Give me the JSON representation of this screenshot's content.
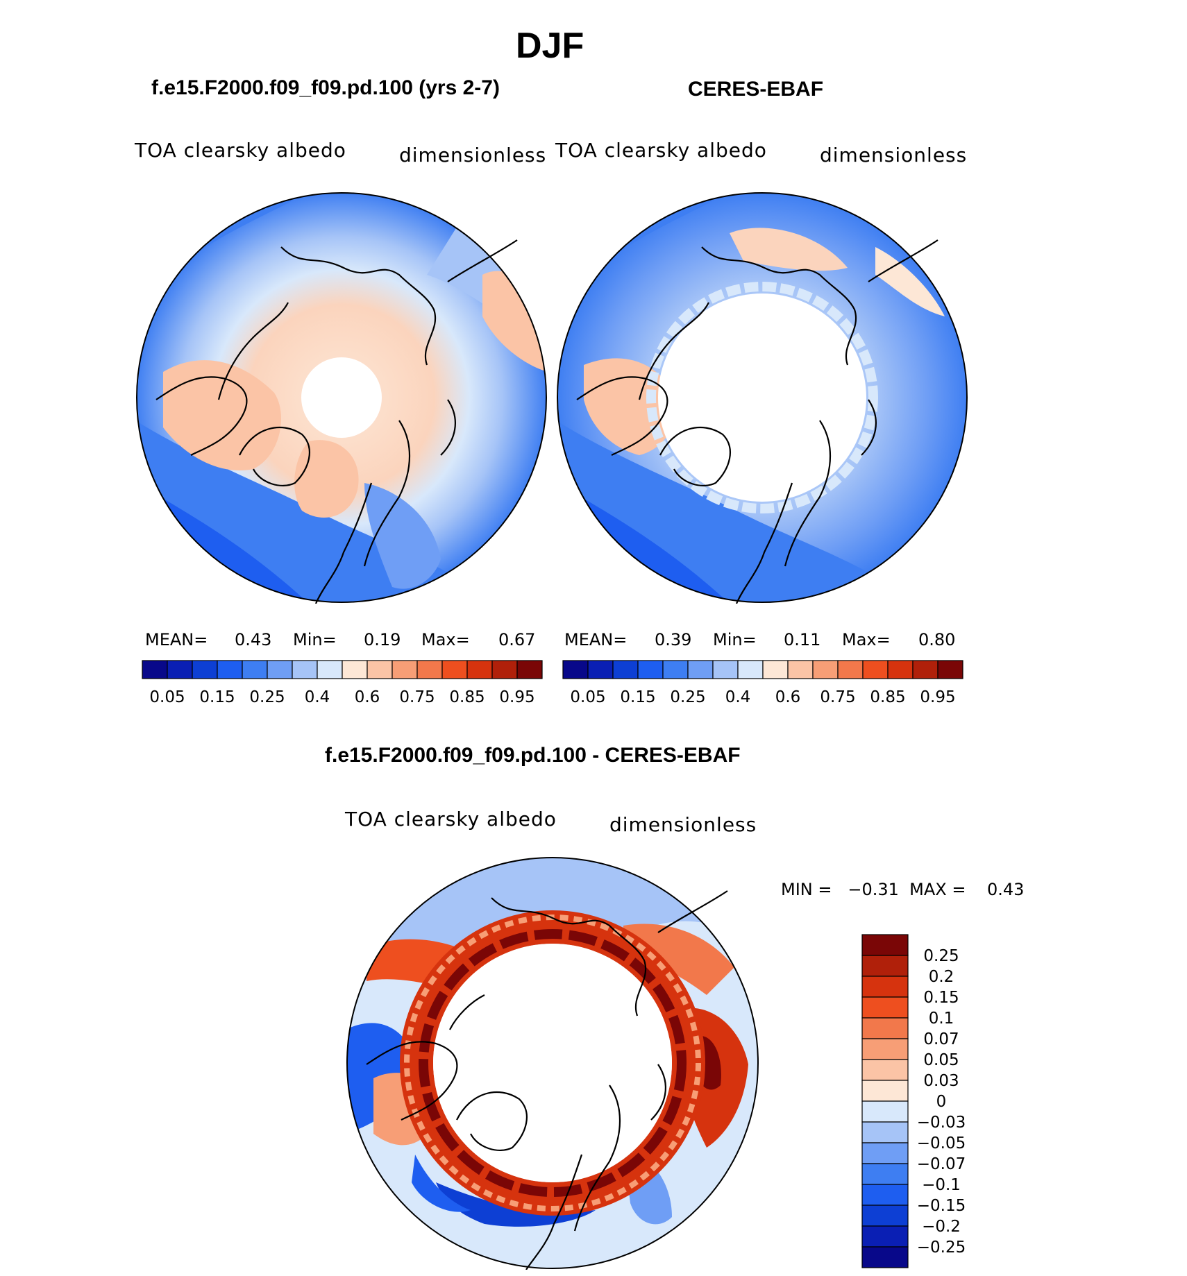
{
  "figure": {
    "season": "DJF",
    "panels": [
      {
        "case_title": "f.e15.F2000.f09_f09.pd.100 (yrs 2-7)",
        "variable": "TOA clearsky albedo",
        "units": "dimensionless",
        "stats": {
          "mean_label": "MEAN=",
          "mean": "0.43",
          "min_label": "Min=",
          "min": "0.19",
          "max_label": "Max=",
          "max": "0.67"
        }
      },
      {
        "case_title": "CERES-EBAF",
        "variable": "TOA clearsky albedo",
        "units": "dimensionless",
        "stats": {
          "mean_label": "MEAN=",
          "mean": "0.39",
          "min_label": "Min=",
          "min": "0.11",
          "max_label": "Max=",
          "max": "0.80"
        }
      },
      {
        "case_title": "f.e15.F2000.f09_f09.pd.100 - CERES-EBAF",
        "variable": "TOA clearsky albedo",
        "units": "dimensionless",
        "stats": {
          "text": "MIN =   −0.31  MAX =    0.43"
        }
      }
    ]
  },
  "colorbars": {
    "abs_colors": [
      "#08088a",
      "#0a1fb4",
      "#0d3fd4",
      "#1e5ef0",
      "#3e7ef2",
      "#6f9ef5",
      "#a6c4f7",
      "#d8e8fb",
      "#fde7d6",
      "#fbc4a6",
      "#f79e76",
      "#f2784b",
      "#ee4f1f",
      "#d6330e",
      "#b0200a",
      "#7a0606"
    ],
    "abs_labels": [
      "0.05",
      "0.15",
      "0.25",
      "0.4",
      "0.6",
      "0.75",
      "0.85",
      "0.95"
    ],
    "diff_colors": [
      "#7a0606",
      "#b0200a",
      "#d6330e",
      "#ee4f1f",
      "#f2784b",
      "#f79e76",
      "#fbc4a6",
      "#fde7d6",
      "#d8e8fb",
      "#a6c4f7",
      "#6f9ef5",
      "#3e7ef2",
      "#1e5ef0",
      "#0d3fd4",
      "#0a1fb4",
      "#08088a"
    ],
    "diff_labels": [
      "0.25",
      "0.2",
      "0.15",
      "0.1",
      "0.07",
      "0.05",
      "0.03",
      "0",
      "−0.03",
      "−0.05",
      "−0.07",
      "−0.1",
      "−0.15",
      "−0.2",
      "−0.25"
    ]
  }
}
